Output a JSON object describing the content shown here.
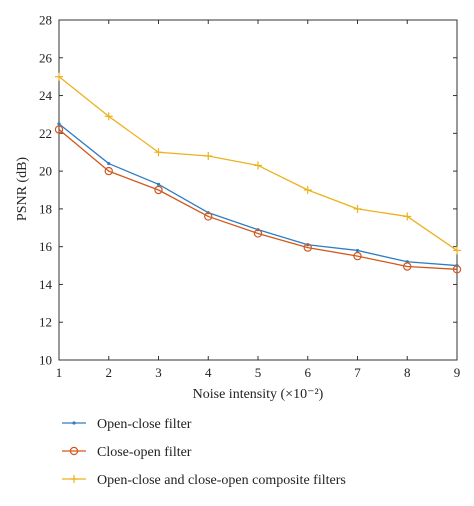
{
  "chart_data": {
    "type": "line",
    "x": [
      1,
      2,
      3,
      4,
      5,
      6,
      7,
      8,
      9
    ],
    "xlim": [
      1,
      9
    ],
    "ylim": [
      10,
      28
    ],
    "xticks": [
      1,
      2,
      3,
      4,
      5,
      6,
      7,
      8,
      9
    ],
    "yticks": [
      10,
      12,
      14,
      16,
      18,
      20,
      22,
      24,
      26,
      28
    ],
    "xlabel": "Noise intensity (×10⁻²)",
    "ylabel": "PSNR (dB)",
    "grid": false,
    "legend_position": "bottom",
    "series": [
      {
        "name": "Open-close filter",
        "color": "#2f7ec0",
        "marker": "point",
        "values": [
          22.5,
          20.4,
          19.3,
          17.8,
          16.9,
          16.1,
          15.8,
          15.2,
          15.0
        ]
      },
      {
        "name": "Close-open filter",
        "color": "#d2571c",
        "marker": "circle",
        "values": [
          22.2,
          20.0,
          19.0,
          17.6,
          16.7,
          15.95,
          15.5,
          14.95,
          14.8
        ]
      },
      {
        "name": "Open-close and close-open composite filters",
        "color": "#edb11e",
        "marker": "plus",
        "values": [
          25.0,
          22.9,
          21.0,
          20.8,
          20.3,
          19.0,
          18.0,
          17.6,
          15.8
        ]
      }
    ]
  }
}
